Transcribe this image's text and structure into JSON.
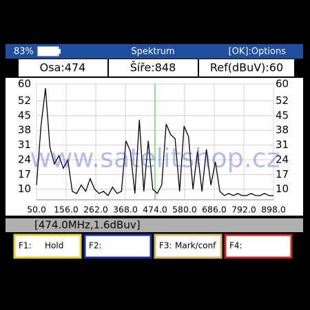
{
  "status_bar": {
    "battery": "83%",
    "title": "Spektrum",
    "options": "[OK]:Options"
  },
  "fields": [
    "Osa:474",
    "Šíře:848",
    "Ref(dBuV):60"
  ],
  "watermark": "www.satelitshop.cz",
  "chart_data": {
    "type": "line",
    "color": "#000000",
    "marker": 474,
    "marker_color": "#66dd66",
    "grid": true,
    "x": [
      50,
      66,
      82,
      98,
      114,
      130,
      146,
      162,
      178,
      194,
      210,
      226,
      242,
      258,
      274,
      290,
      306,
      322,
      338,
      354,
      370,
      386,
      402,
      418,
      434,
      450,
      466,
      482,
      498,
      514,
      530,
      546,
      562,
      578,
      594,
      610,
      626,
      642,
      658,
      674,
      690,
      706,
      722,
      738,
      754,
      770,
      786,
      802,
      818,
      834,
      850,
      866,
      882,
      898
    ],
    "values": [
      12,
      40,
      58,
      30,
      22,
      26,
      20,
      24,
      9,
      8,
      12,
      9,
      15,
      10,
      8,
      9,
      7,
      11,
      8,
      9,
      33,
      28,
      8,
      43,
      9,
      33,
      10,
      8,
      12,
      41,
      36,
      34,
      9,
      40,
      35,
      10,
      28,
      9,
      29,
      12,
      23,
      9,
      7,
      8,
      7,
      8,
      7,
      7,
      8,
      7,
      7,
      8,
      7,
      7
    ],
    "xlim": [
      50,
      898
    ],
    "xticks": [
      {
        "value": 50,
        "label": "50.0"
      },
      {
        "value": 156,
        "label": "156.0"
      },
      {
        "value": 262,
        "label": "262.0"
      },
      {
        "value": 368,
        "label": "368.0"
      },
      {
        "value": 474,
        "label": "474.0"
      },
      {
        "value": 580,
        "label": "580.0"
      },
      {
        "value": 686,
        "label": "686.0"
      },
      {
        "value": 792,
        "label": "792.0"
      },
      {
        "value": 898,
        "label": "898.0"
      }
    ],
    "ylim": [
      5,
      60
    ],
    "yticks": [
      60,
      52,
      45,
      38,
      31,
      24,
      17,
      10
    ]
  },
  "readout": "[474.0MHz,1.6dBuv]",
  "function_keys": [
    {
      "key": "F1:",
      "label": "Hold"
    },
    {
      "key": "F2:"
    },
    {
      "key": "F3:",
      "label": "Mark/conf"
    },
    {
      "key": "F4:"
    }
  ]
}
